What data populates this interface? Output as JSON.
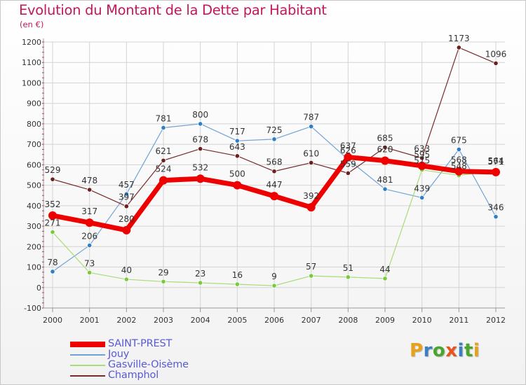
{
  "title": "Evolution du Montant de la Dette par Habitant",
  "subtitle": "(en €)",
  "logo": {
    "letters": [
      {
        "ch": "P",
        "color": "#e8a21a"
      },
      {
        "ch": "r",
        "color": "#3a7fc4"
      },
      {
        "ch": "o",
        "color": "#4aa52e"
      },
      {
        "ch": "x",
        "color": "#e8541a"
      },
      {
        "ch": "i",
        "color": "#3a7fc4"
      },
      {
        "ch": "t",
        "color": "#4aa52e"
      },
      {
        "ch": "i",
        "color": "#e8a21a"
      }
    ]
  },
  "chart_data": {
    "type": "line",
    "x": [
      "2000",
      "2001",
      "2002",
      "2003",
      "2004",
      "2005",
      "2006",
      "2007",
      "2008",
      "2009",
      "2010",
      "2011",
      "2012"
    ],
    "ylim": [
      -100,
      1200
    ],
    "yticks": [
      -100,
      0,
      100,
      200,
      300,
      400,
      500,
      600,
      700,
      800,
      900,
      1000,
      1100,
      1200
    ],
    "grid": true,
    "legend": "bottom-left",
    "series": [
      {
        "name": "SAINT-PREST",
        "color": "#ee0000",
        "width": 7,
        "dot_fill": "#ee0000",
        "values": [
          352,
          317,
          280,
          524,
          532,
          500,
          447,
          392,
          637,
          620,
          595,
          568,
          564
        ],
        "labels": [
          "352",
          "317",
          "280",
          "524",
          "532",
          "500",
          "447",
          "392",
          "637",
          "620",
          "595",
          "568",
          "564"
        ]
      },
      {
        "name": "Jouy",
        "color": "#6fa3d6",
        "width": 1.2,
        "dot_fill": "#2f7fc6",
        "values": [
          78,
          206,
          457,
          781,
          800,
          717,
          725,
          787,
          626,
          481,
          439,
          675,
          346
        ],
        "labels": [
          "78",
          "206",
          "457",
          "781",
          "800",
          "717",
          "725",
          "787",
          "626",
          "481",
          "439",
          "675",
          "346"
        ]
      },
      {
        "name": "Gasville-Oisème",
        "color": "#a8dc78",
        "width": 1.2,
        "dot_fill": "#7acb3c",
        "values": [
          271,
          73,
          40,
          29,
          23,
          16,
          9,
          57,
          51,
          44,
          575,
          548,
          571
        ],
        "labels": [
          "271",
          "73",
          "40",
          "29",
          "23",
          "16",
          "9",
          "57",
          "51",
          "44",
          "575",
          "548",
          "571"
        ]
      },
      {
        "name": "Champhol",
        "color": "#7a2a2a",
        "width": 1.2,
        "dot_fill": "#6b1f1f",
        "values": [
          529,
          478,
          397,
          621,
          678,
          643,
          568,
          610,
          559,
          685,
          633,
          1173,
          1096
        ],
        "labels": [
          "529",
          "478",
          "397",
          "621",
          "678",
          "643",
          "568",
          "610",
          "559",
          "685",
          "633",
          "1173",
          "1096"
        ]
      }
    ]
  }
}
